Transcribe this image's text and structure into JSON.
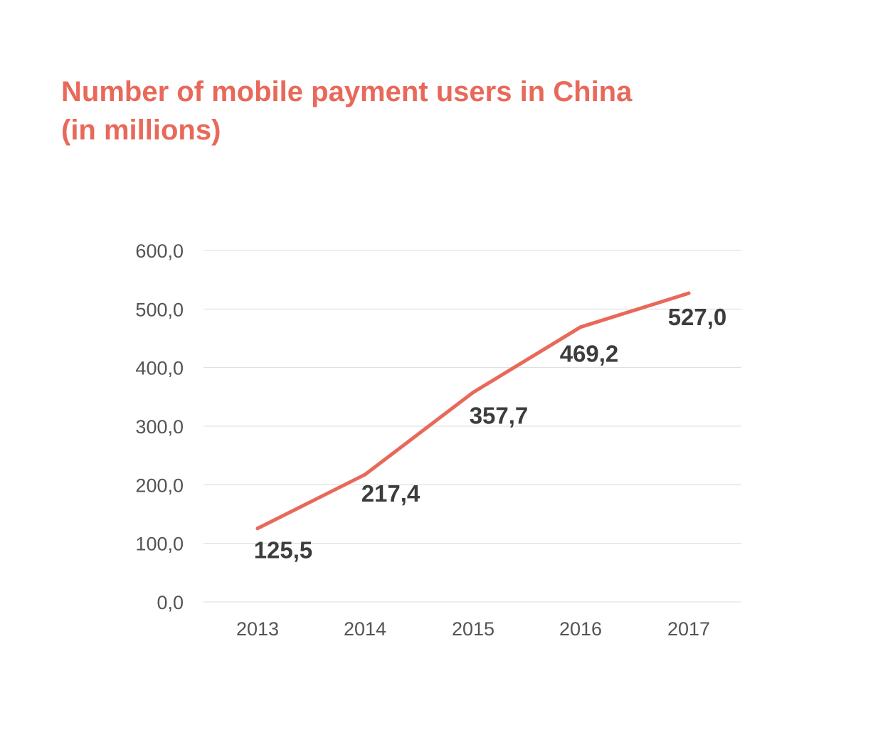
{
  "title_line1": "Number of mobile payment users in China",
  "title_line2": "(in millions)",
  "colors": {
    "title": "#e8695a",
    "line": "#e8695a",
    "grid": "#dcdcdc",
    "tick_text": "#545454",
    "data_label": "#3d3d3d"
  },
  "chart_data": {
    "type": "line",
    "title": "Number of mobile payment users in China (in millions)",
    "categories": [
      "2013",
      "2014",
      "2015",
      "2016",
      "2017"
    ],
    "series": [
      {
        "values": [
          125.5,
          217.4,
          357.7,
          469.2,
          527.0
        ],
        "labels": [
          "125,5",
          "217,4",
          "357,7",
          "469,2",
          "527,0"
        ]
      }
    ],
    "ylim": [
      0,
      600
    ],
    "yticks": [
      0,
      100,
      200,
      300,
      400,
      500,
      600
    ],
    "ytick_labels": [
      "0,0",
      "100,0",
      "200,0",
      "300,0",
      "400,0",
      "500,0",
      "600,0"
    ],
    "grid": true,
    "legend": "none"
  }
}
